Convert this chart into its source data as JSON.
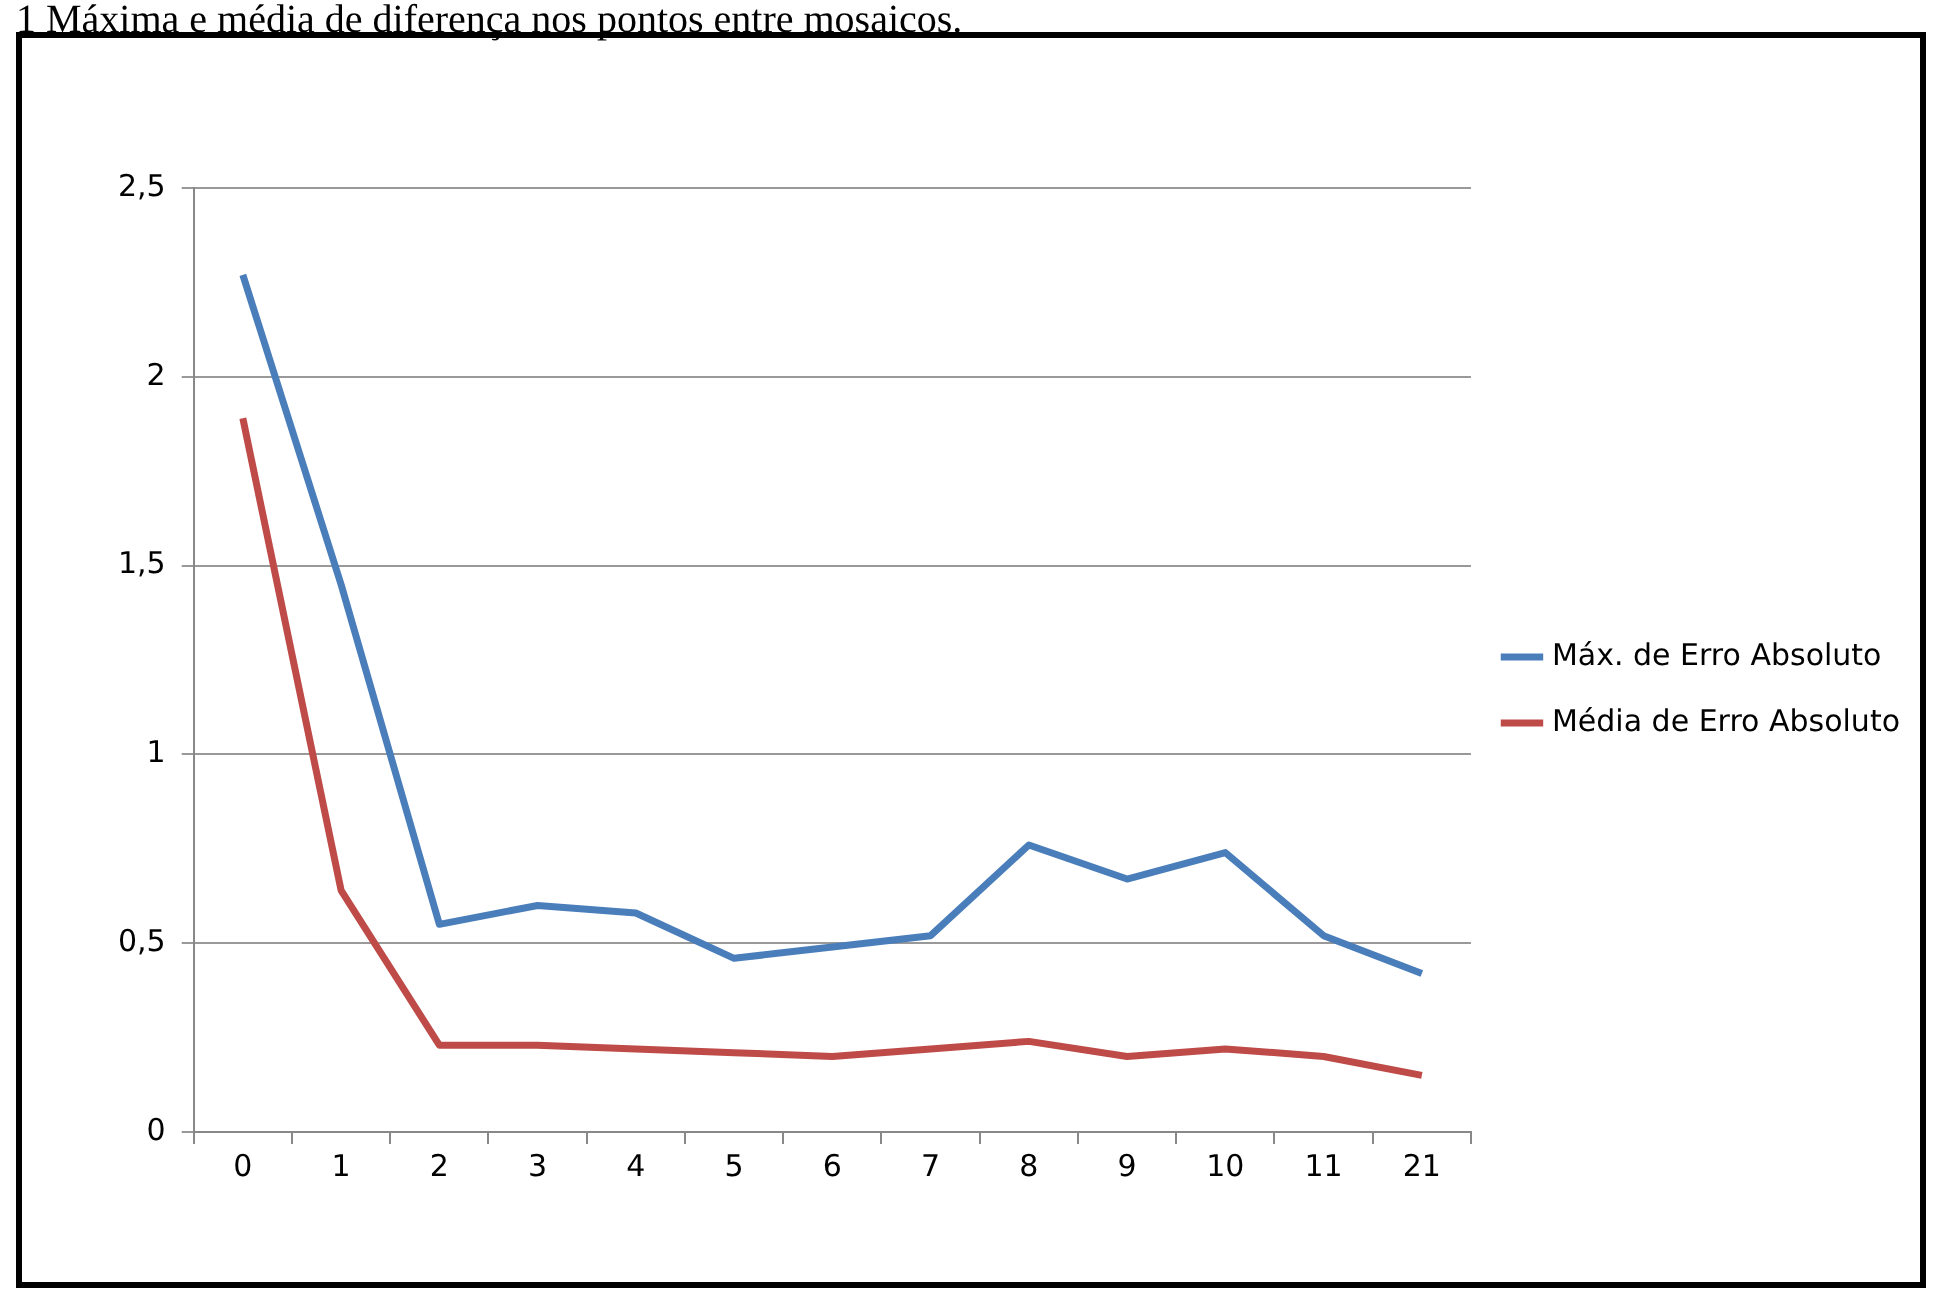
{
  "chart_data": {
    "type": "line",
    "title": "1 Máxima e média de diferença nos pontos entre mosaicos.",
    "categories": [
      "0",
      "1",
      "2",
      "3",
      "4",
      "5",
      "6",
      "7",
      "8",
      "9",
      "10",
      "11",
      "21"
    ],
    "series": [
      {
        "name": "Máx. de Erro Absoluto",
        "color": "#4a7ebb",
        "values": [
          2.27,
          1.45,
          0.55,
          0.6,
          0.58,
          0.46,
          0.49,
          0.52,
          0.76,
          0.67,
          0.74,
          0.52,
          0.42
        ]
      },
      {
        "name": "Média de Erro Absoluto",
        "color": "#be4b48",
        "values": [
          1.89,
          0.64,
          0.23,
          0.23,
          0.22,
          0.21,
          0.2,
          0.22,
          0.24,
          0.2,
          0.22,
          0.2,
          0.15
        ]
      }
    ],
    "ylim": [
      0,
      2.5
    ],
    "yticks": [
      0,
      {
        "value": 0.5,
        "label": "0,5"
      },
      1,
      {
        "value": 1.5,
        "label": "1,5"
      },
      2,
      {
        "value": 2.5,
        "label": "2,5"
      }
    ],
    "grid": "y",
    "legend": "right",
    "marker": "none",
    "line_style": "solid"
  }
}
